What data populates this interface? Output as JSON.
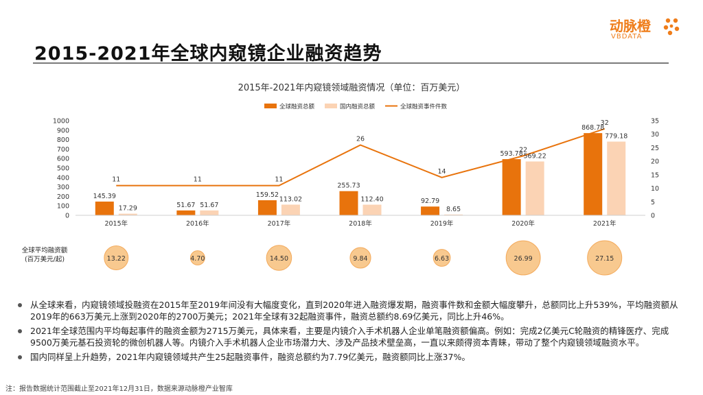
{
  "page_title": "2015-2021年全球内窥镜企业融资趋势",
  "logo": {
    "cn": "动脉橙",
    "en": "VBDATA",
    "mark_icon": "orange-dots-logo-icon",
    "color": "#ef7d1a"
  },
  "colors": {
    "global_bar": "#e8730c",
    "domestic_bar": "#fbd3b4",
    "line": "#e8730c",
    "bubble": "#f8c98f",
    "bubble_edge": "#f3a95a"
  },
  "chart_data": {
    "type": "bar",
    "title": "2015年-2021年内窥镜领域融资情况（单位：百万美元）",
    "categories": [
      "2015年",
      "2016年",
      "2017年",
      "2018年",
      "2019年",
      "2020年",
      "2021年"
    ],
    "series": [
      {
        "name": "全球融资总额",
        "type": "bar",
        "values": [
          145.39,
          51.67,
          159.52,
          255.73,
          92.79,
          593.78,
          868.78
        ],
        "labels": [
          "145.39",
          "51.67",
          "159.52",
          "255.73",
          "92.79",
          "593.78",
          "868.78"
        ]
      },
      {
        "name": "国内融资总额",
        "type": "bar",
        "values": [
          17.29,
          51.67,
          113.02,
          112.4,
          8.65,
          569.22,
          779.18
        ],
        "labels": [
          "17.29",
          "51.67",
          "113.02",
          "112.40",
          "8.65",
          "569.22",
          "779.18"
        ]
      },
      {
        "name": "全球融资事件件数",
        "type": "line",
        "axis": "right",
        "values": [
          11,
          11,
          11,
          26,
          14,
          22,
          32
        ],
        "labels": [
          "11",
          "11",
          "11",
          "26",
          "14",
          "22",
          "32"
        ]
      }
    ],
    "ylim": [
      0,
      1000
    ],
    "yticks": [
      "0",
      "100",
      "200",
      "300",
      "400",
      "500",
      "600",
      "700",
      "800",
      "900",
      "1000"
    ],
    "y2lim": [
      0,
      35
    ],
    "y2ticks": [
      "0",
      "5",
      "10",
      "15",
      "20",
      "25",
      "30",
      "35"
    ],
    "legend_position": "top",
    "grid": false,
    "bubble_row": {
      "label_line1": "全球平均融资额",
      "label_line2": "(百万美元/起)",
      "values": [
        13.22,
        4.7,
        14.5,
        9.84,
        6.63,
        26.99,
        27.15
      ],
      "labels": [
        "13.22",
        "4.70",
        "14.50",
        "9.84",
        "6.63",
        "26.99",
        "27.15"
      ]
    }
  },
  "bullets": [
    "从全球来看，内窥镜领域投融资在2015年至2019年间没有大幅度变化，直到2020年进入融资爆发期，融资事件数和金额大幅度攀升，总额同比上升539%，平均融资额从2019年的663万美元上涨到2020年的2700万美元；2021年全球有32起融资事件，融资总额约8.69亿美元，同比上升46%。",
    "2021年全球范围内平均每起事件的融资金额为2715万美元，具体来看，主要是内镜介入手术机器人企业单笔融资额偏高。例如：完成2亿美元C轮融资的精锋医疗、完成9500万美元基石投资轮的微创机器人等。内镜介入手术机器人企业市场潜力大、涉及产品技术壁垒高，一直以来颇得资本青睐，带动了整个内窥镜领域融资水平。",
    "国内同样呈上升趋势，2021年内窥镜领域共产生25起融资事件，融资总额约为7.79亿美元，融资额同比上涨37%。"
  ],
  "footnote": "注：报告数据统计范围截止至2021年12月31日，数据来源动脉橙产业智库"
}
